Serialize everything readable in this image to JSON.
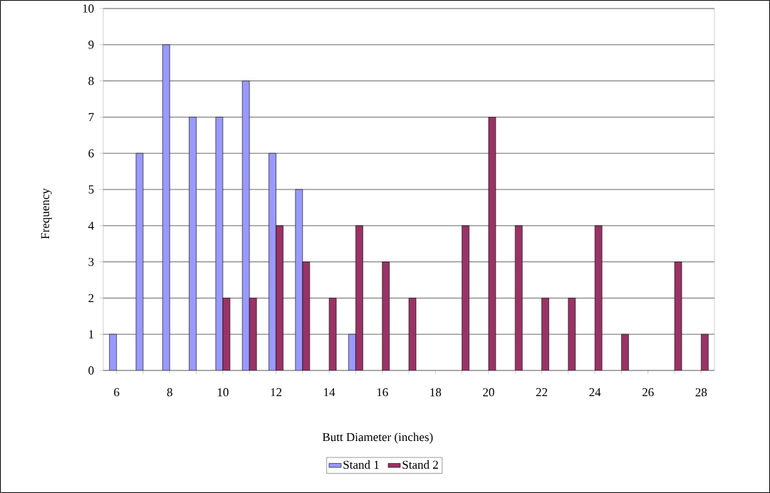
{
  "chart_data": {
    "type": "bar",
    "xlabel": "Butt Diameter (inches)",
    "ylabel": "Frequency",
    "categories": [
      "6",
      null,
      "8",
      null,
      "10",
      null,
      "12",
      null,
      "14",
      null,
      "16",
      null,
      "18",
      null,
      "20",
      null,
      "22",
      null,
      "24",
      null,
      "26",
      null,
      "28"
    ],
    "series": [
      {
        "name": "Stand 1",
        "color": "#9999ff",
        "values": [
          1,
          6,
          9,
          7,
          7,
          8,
          6,
          5,
          null,
          1,
          null,
          null,
          null,
          null,
          null,
          null,
          null,
          null,
          null,
          null,
          null,
          null,
          null
        ]
      },
      {
        "name": "Stand 2",
        "color": "#993366",
        "values": [
          null,
          null,
          null,
          null,
          2,
          2,
          4,
          3,
          2,
          4,
          3,
          2,
          null,
          4,
          7,
          4,
          2,
          2,
          4,
          1,
          null,
          3,
          1
        ]
      }
    ],
    "ylim": [
      0,
      10
    ],
    "yticks": [
      0,
      1,
      2,
      3,
      4,
      5,
      6,
      7,
      8,
      9,
      10
    ],
    "grid": "y",
    "legend": "bottom"
  }
}
